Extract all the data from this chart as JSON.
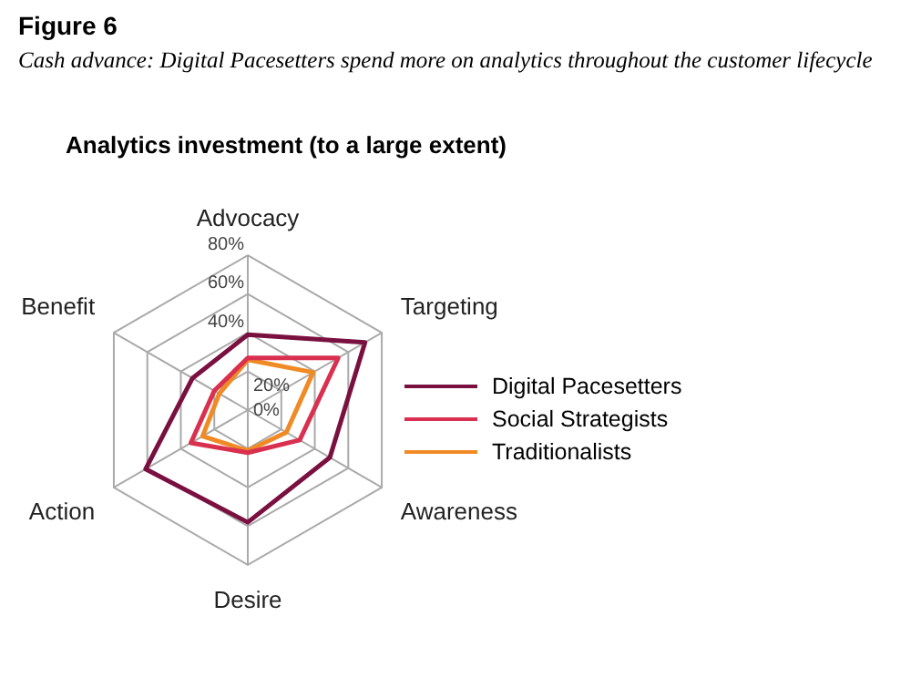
{
  "chart_data": {
    "type": "radar",
    "title": "Figure 6",
    "subtitle": "Cash advance: Digital Pacesetters spend more on analytics throughout the customer lifecycle",
    "annotations": [
      "Analytics investment (to a large extent)"
    ],
    "categories": [
      "Advocacy",
      "Targeting",
      "Awareness",
      "Desire",
      "Action",
      "Benefit"
    ],
    "ylim": [
      0,
      80
    ],
    "yticks": [
      {
        "value": 0,
        "label": "0%"
      },
      {
        "value": 20,
        "label": "20%"
      },
      {
        "value": 40,
        "label": "40%"
      },
      {
        "value": 60,
        "label": "60%"
      },
      {
        "value": 80,
        "label": "80%"
      }
    ],
    "grid": true,
    "legend": "right",
    "marker": "none",
    "series": [
      {
        "name": "Digital Pacesetters",
        "color": "#7a1040",
        "values": [
          39,
          70,
          49,
          58,
          61,
          33
        ]
      },
      {
        "name": "Social Strategists",
        "color": "#d9304f",
        "values": [
          27,
          54,
          31,
          22,
          34,
          20
        ]
      },
      {
        "name": "Traditionalists",
        "color": "#f08a24",
        "values": [
          26,
          39,
          23,
          21,
          27,
          17
        ]
      }
    ]
  }
}
